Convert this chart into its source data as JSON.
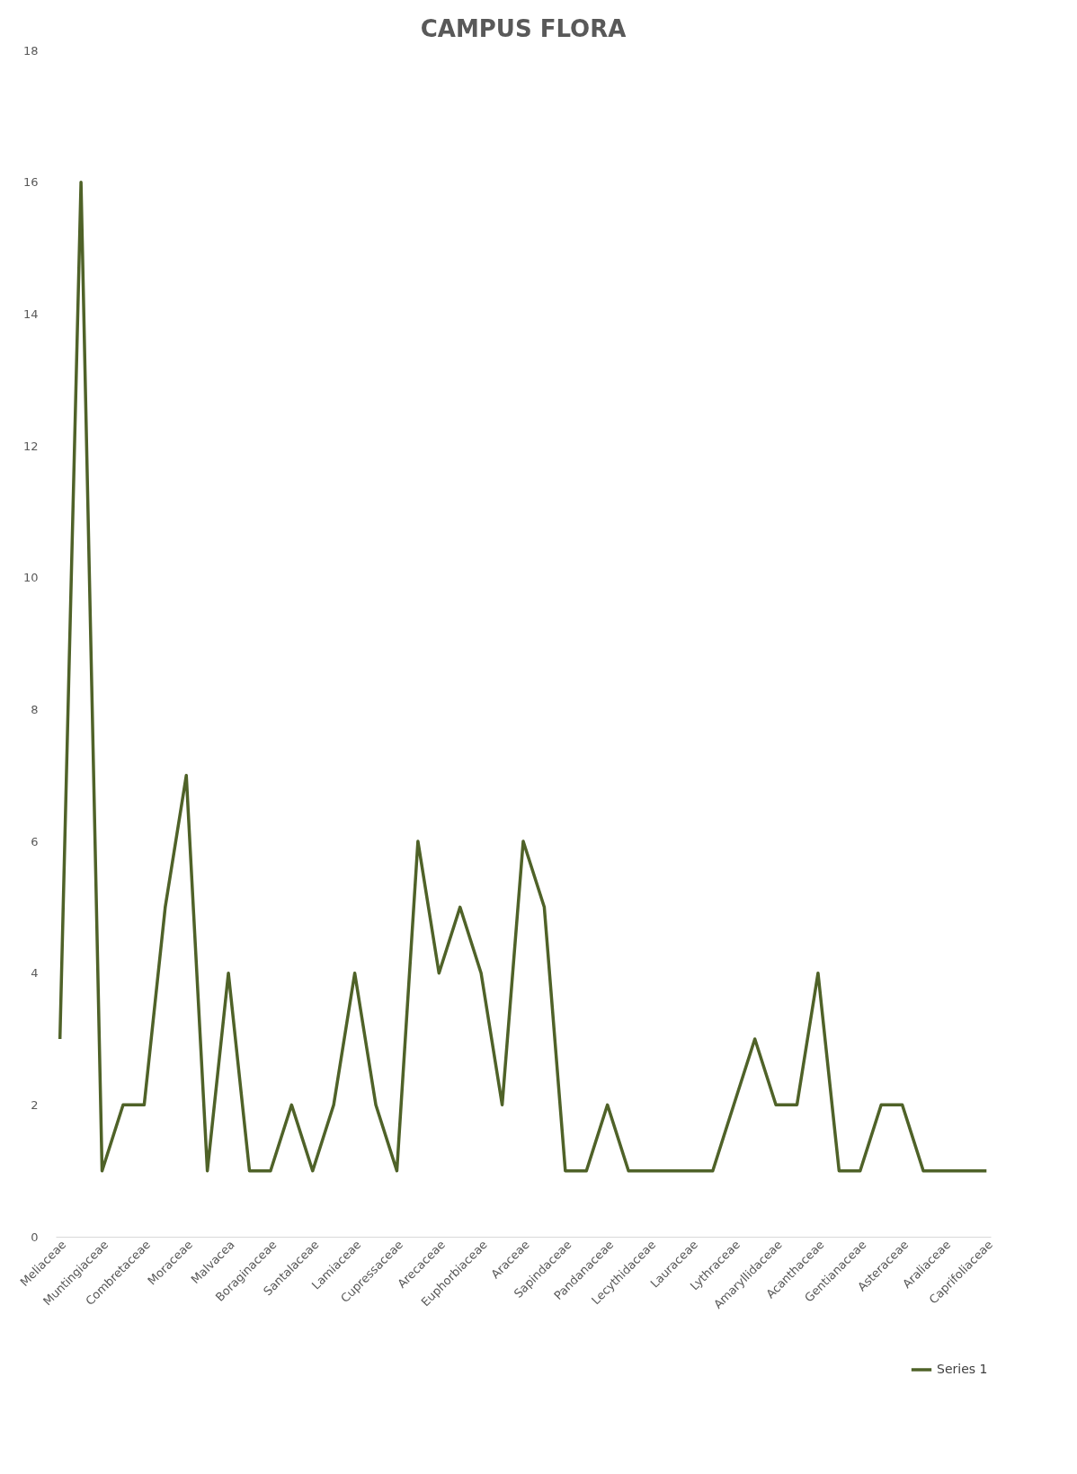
{
  "chart_data": {
    "type": "line",
    "title": "CAMPUS FLORA",
    "categories": [
      "Meliaceae",
      null,
      "Muntingiaceae",
      null,
      "Combretaceae",
      null,
      "Moraceae",
      null,
      "Malvacea",
      null,
      "Boraginaceae",
      null,
      "Santalaceae",
      null,
      "Lamiaceae",
      null,
      "Cupressaceae",
      null,
      "Arecaceae",
      null,
      "Euphorbiaceae",
      null,
      "Araceae",
      null,
      "Sapindaceae",
      null,
      "Pandanaceae",
      null,
      "Lecythidaceae",
      null,
      "Lauraceae",
      null,
      "Lythraceae",
      null,
      "Amaryllidaceae",
      null,
      "Acanthaceae",
      null,
      "Gentianaceae",
      null,
      "Asteraceae",
      null,
      "Araliaceae",
      null,
      "Caprifoliaceae"
    ],
    "series": [
      {
        "name": "Series 1",
        "color": "#4f6228",
        "values": [
          3,
          16,
          1,
          2,
          2,
          5,
          7,
          1,
          4,
          1,
          1,
          2,
          1,
          2,
          4,
          2,
          1,
          6,
          4,
          5,
          4,
          2,
          6,
          5,
          1,
          1,
          2,
          1,
          1,
          1,
          1,
          1,
          2,
          3,
          2,
          2,
          4,
          1,
          1,
          2,
          2,
          1,
          1,
          1,
          1
        ]
      }
    ],
    "ylim": [
      0,
      18
    ],
    "yticks": [
      0,
      2,
      4,
      6,
      8,
      10,
      12,
      14,
      16,
      18
    ],
    "grid": false,
    "legend": "bottom right",
    "marker": "none",
    "line_style": "solid"
  }
}
